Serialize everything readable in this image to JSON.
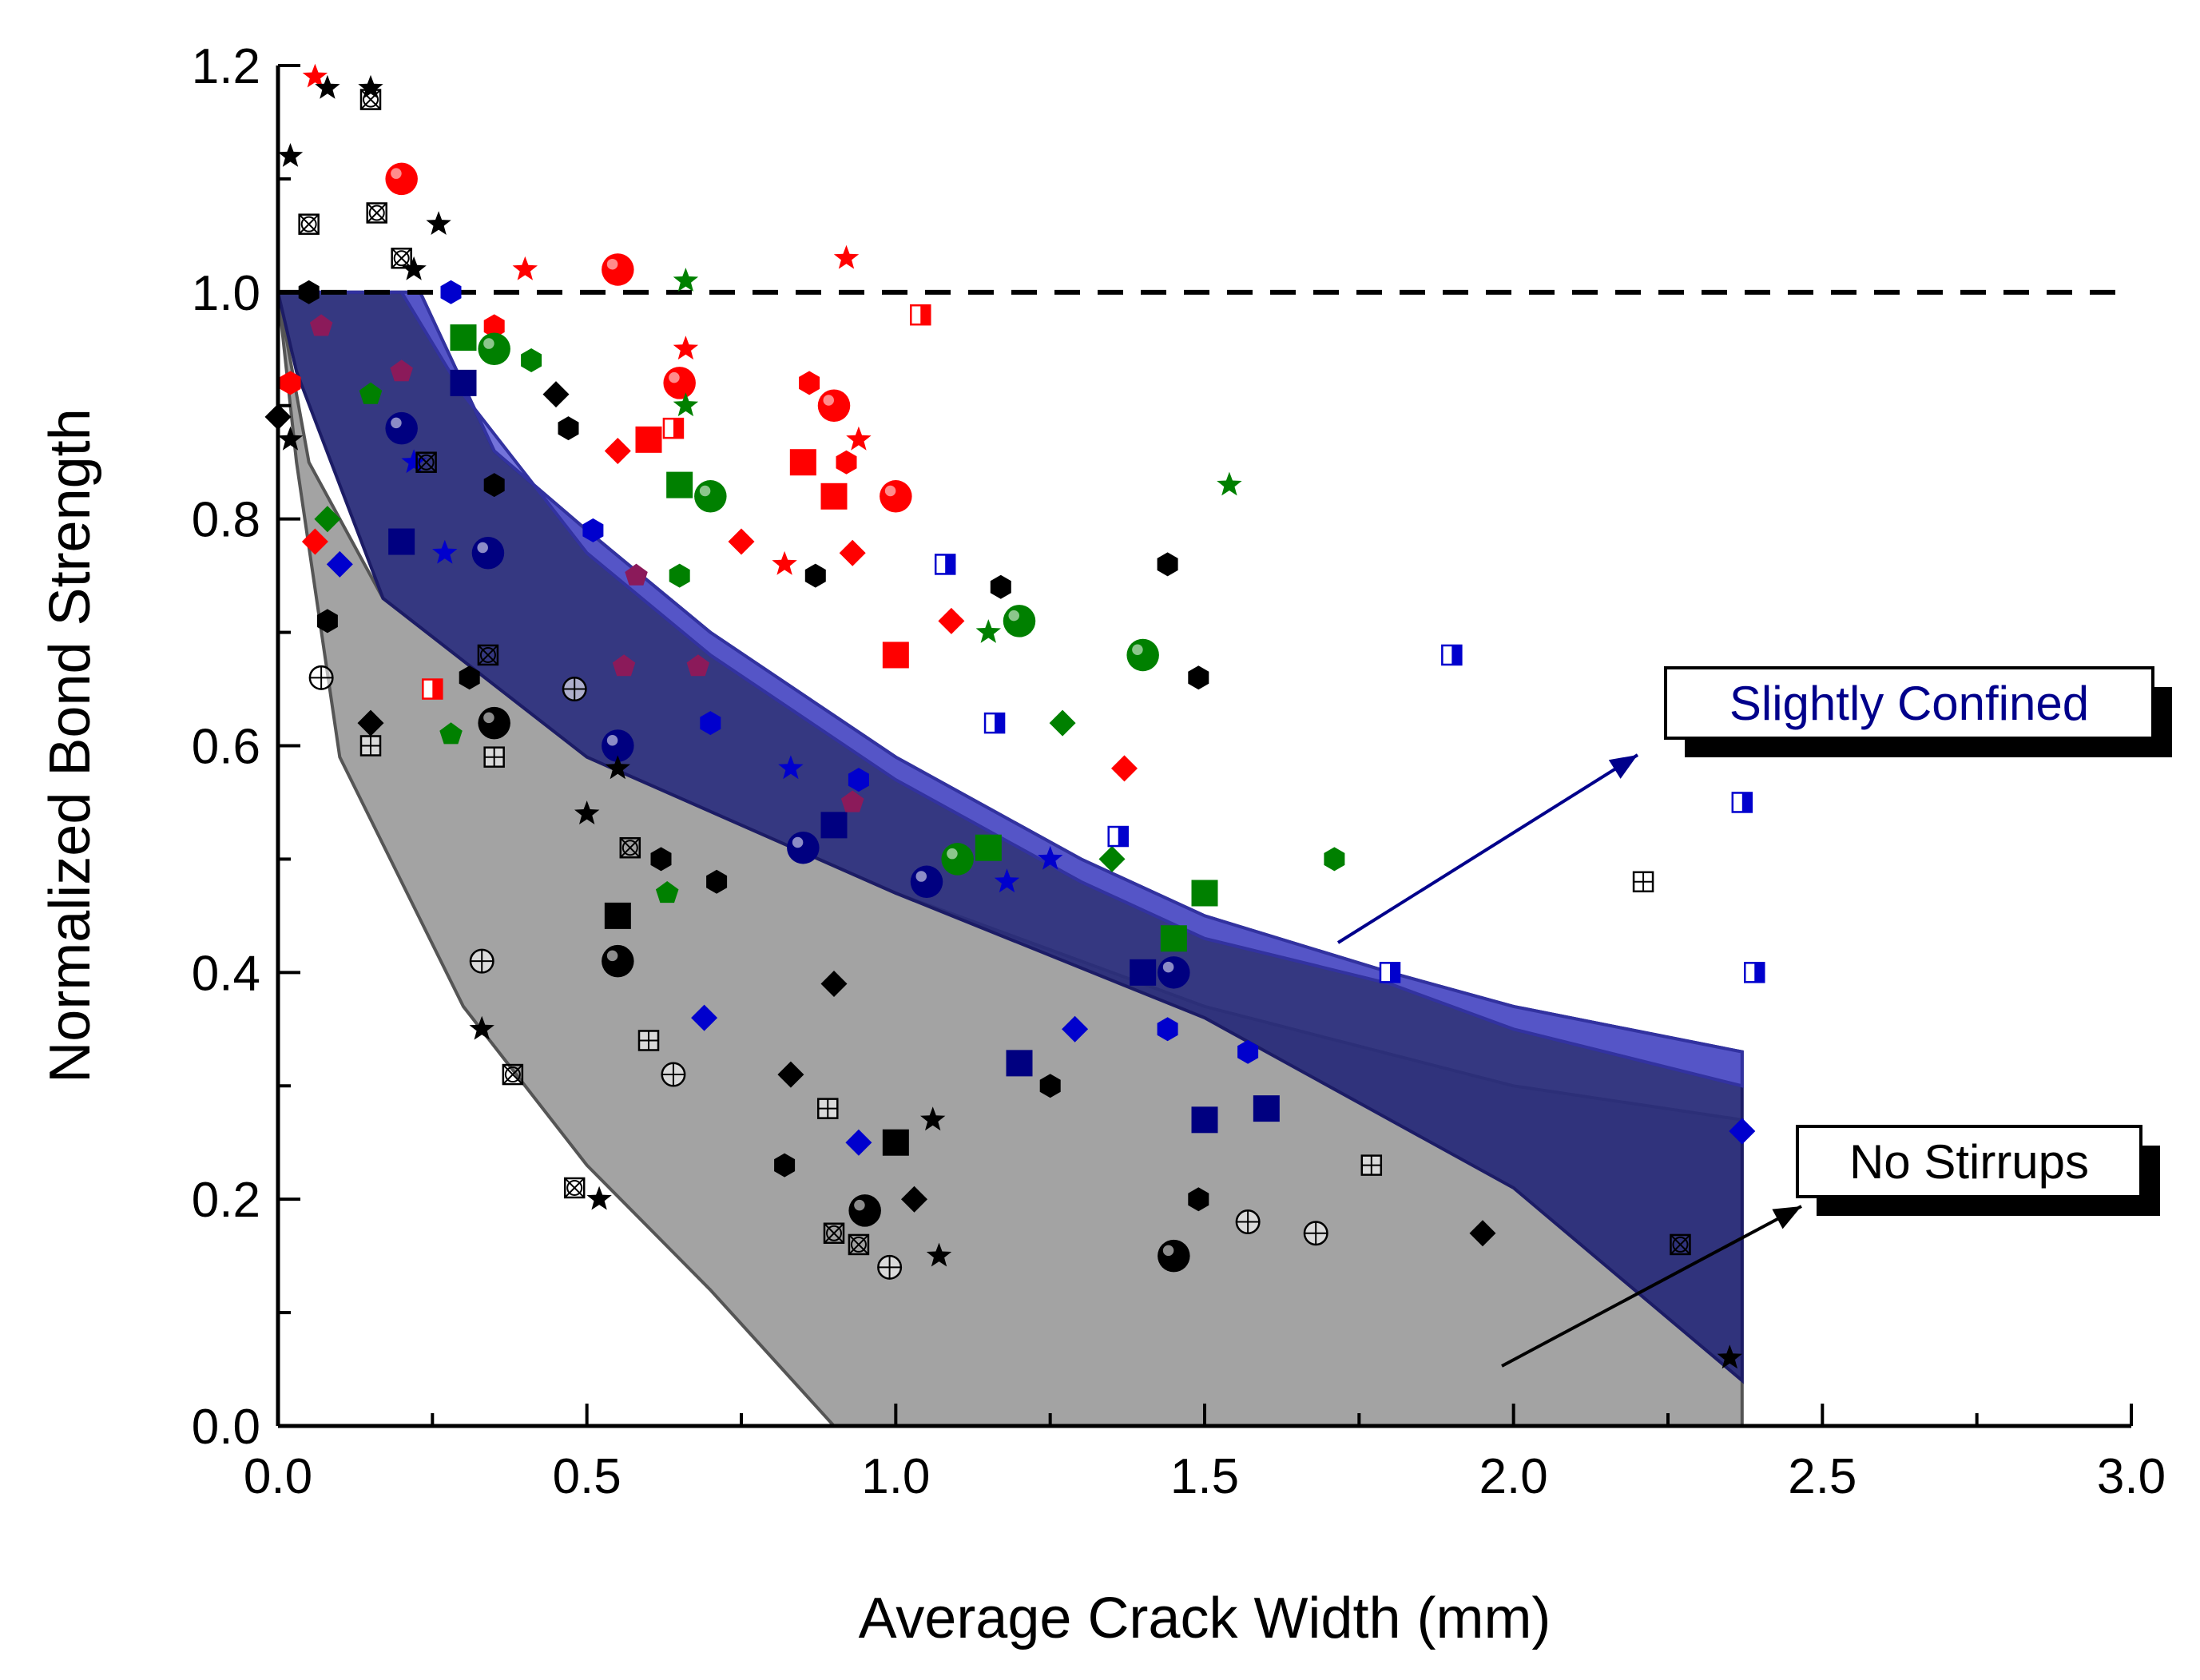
{
  "chart_data": {
    "type": "scatter",
    "title": "",
    "xlabel": "Average Crack Width (mm)",
    "ylabel": "Normalized Bond Strength",
    "xlim": [
      0,
      3.0
    ],
    "ylim": [
      0,
      1.2
    ],
    "xticks": [
      "0.0",
      "0.5",
      "1.0",
      "1.5",
      "2.0",
      "2.5",
      "3.0"
    ],
    "yticks": [
      "0.0",
      "0.2",
      "0.4",
      "0.6",
      "0.8",
      "1.0",
      "1.2"
    ],
    "grid": false,
    "reference_line": {
      "y": 1.0,
      "style": "dashed",
      "color": "#000000"
    },
    "annotations": [
      {
        "text": "Slightly Confined",
        "color": "#00008B",
        "points_to": "blue band"
      },
      {
        "text": "No Stirrups",
        "color": "#000000",
        "points_to": "grey band"
      }
    ],
    "bands": [
      {
        "fill": "#9e9e9e",
        "upper": [
          [
            0,
            1.0
          ],
          [
            0.05,
            0.85
          ],
          [
            0.17,
            0.73
          ],
          [
            0.5,
            0.59
          ],
          [
            1.0,
            0.47
          ],
          [
            1.5,
            0.37
          ],
          [
            2.0,
            0.3
          ],
          [
            2.37,
            0.27
          ]
        ],
        "lower": [
          [
            0,
            1.0
          ],
          [
            0.03,
            0.85
          ],
          [
            0.1,
            0.59
          ],
          [
            0.3,
            0.37
          ],
          [
            0.5,
            0.23
          ],
          [
            0.7,
            0.12
          ],
          [
            0.9,
            0.0
          ],
          [
            2.37,
            0.0
          ]
        ]
      },
      {
        "fill": "#2a2d7a",
        "upper": [
          [
            0,
            1.0
          ],
          [
            0.23,
            1.0
          ],
          [
            0.35,
            0.86
          ],
          [
            0.5,
            0.79
          ],
          [
            0.7,
            0.7
          ],
          [
            1.0,
            0.59
          ],
          [
            1.3,
            0.5
          ],
          [
            1.5,
            0.45
          ],
          [
            1.8,
            0.4
          ],
          [
            2.0,
            0.37
          ],
          [
            2.37,
            0.33
          ]
        ],
        "lower": [
          [
            0,
            1.0
          ],
          [
            0.03,
            0.93
          ],
          [
            0.17,
            0.73
          ],
          [
            0.5,
            0.59
          ],
          [
            1.0,
            0.47
          ],
          [
            1.5,
            0.36
          ],
          [
            2.0,
            0.21
          ],
          [
            2.37,
            0.04
          ]
        ]
      },
      {
        "fill": "#5a5ad4",
        "upper": [
          [
            0,
            1.0
          ],
          [
            0.23,
            1.0
          ],
          [
            0.35,
            0.86
          ],
          [
            0.5,
            0.79
          ],
          [
            0.7,
            0.7
          ],
          [
            1.0,
            0.59
          ],
          [
            1.3,
            0.5
          ],
          [
            1.5,
            0.45
          ],
          [
            1.8,
            0.4
          ],
          [
            2.0,
            0.37
          ],
          [
            2.37,
            0.33
          ]
        ],
        "lower": [
          [
            0,
            1.0
          ],
          [
            0.2,
            1.0
          ],
          [
            0.3,
            0.91
          ],
          [
            0.5,
            0.77
          ],
          [
            0.7,
            0.68
          ],
          [
            1.0,
            0.57
          ],
          [
            1.3,
            0.48
          ],
          [
            1.5,
            0.43
          ],
          [
            1.8,
            0.39
          ],
          [
            2.0,
            0.35
          ],
          [
            2.37,
            0.3
          ]
        ]
      }
    ],
    "series": [
      {
        "color": "#ff0000",
        "marker": "star",
        "points": [
          [
            0.06,
            1.19
          ],
          [
            0.4,
            1.02
          ],
          [
            0.92,
            1.03
          ],
          [
            0.66,
            0.95
          ],
          [
            0.94,
            0.87
          ],
          [
            0.82,
            0.76
          ]
        ]
      },
      {
        "color": "#ff0000",
        "marker": "ball",
        "points": [
          [
            0.2,
            1.1
          ],
          [
            0.55,
            1.02
          ],
          [
            0.65,
            0.92
          ],
          [
            0.9,
            0.9
          ],
          [
            1.0,
            0.82
          ]
        ]
      },
      {
        "color": "#ff0000",
        "marker": "square",
        "points": [
          [
            0.6,
            0.87
          ],
          [
            0.85,
            0.85
          ],
          [
            0.9,
            0.82
          ],
          [
            1.0,
            0.68
          ]
        ]
      },
      {
        "color": "#ff0000",
        "marker": "hexagon",
        "points": [
          [
            0.86,
            0.92
          ],
          [
            0.92,
            0.85
          ],
          [
            0.35,
            0.97
          ],
          [
            0.02,
            0.92
          ]
        ]
      },
      {
        "color": "#ff0000",
        "marker": "diamond",
        "points": [
          [
            0.55,
            0.86
          ],
          [
            0.75,
            0.78
          ],
          [
            0.93,
            0.77
          ],
          [
            1.09,
            0.71
          ],
          [
            1.37,
            0.58
          ],
          [
            0.06,
            0.78
          ]
        ]
      },
      {
        "color": "#ff0000",
        "marker": "half-square",
        "points": [
          [
            0.64,
            0.88
          ],
          [
            1.04,
            0.98
          ],
          [
            0.25,
            0.65
          ]
        ]
      },
      {
        "color": "#008000",
        "marker": "star",
        "points": [
          [
            0.66,
            1.01
          ],
          [
            0.66,
            0.9
          ],
          [
            1.15,
            0.7
          ],
          [
            1.54,
            0.83
          ]
        ]
      },
      {
        "color": "#008000",
        "marker": "ball",
        "points": [
          [
            0.35,
            0.95
          ],
          [
            0.7,
            0.82
          ],
          [
            1.2,
            0.71
          ],
          [
            1.4,
            0.68
          ],
          [
            1.1,
            0.5
          ]
        ]
      },
      {
        "color": "#008000",
        "marker": "square",
        "points": [
          [
            0.3,
            0.96
          ],
          [
            0.65,
            0.83
          ],
          [
            1.15,
            0.51
          ],
          [
            1.45,
            0.43
          ],
          [
            1.5,
            0.47
          ]
        ]
      },
      {
        "color": "#008000",
        "marker": "hexagon",
        "points": [
          [
            0.41,
            0.94
          ],
          [
            1.71,
            0.5
          ],
          [
            0.65,
            0.75
          ]
        ]
      },
      {
        "color": "#008000",
        "marker": "diamond",
        "points": [
          [
            1.27,
            0.62
          ],
          [
            1.35,
            0.5
          ],
          [
            0.08,
            0.8
          ]
        ]
      },
      {
        "color": "#008000",
        "marker": "pentagon",
        "points": [
          [
            0.28,
            0.61
          ],
          [
            0.63,
            0.47
          ],
          [
            0.15,
            0.91
          ]
        ]
      },
      {
        "color": "#0000cd",
        "marker": "hexagon",
        "points": [
          [
            0.28,
            1.0
          ],
          [
            0.51,
            0.79
          ],
          [
            0.7,
            0.62
          ],
          [
            0.94,
            0.57
          ],
          [
            1.57,
            0.33
          ],
          [
            1.44,
            0.35
          ]
        ]
      },
      {
        "color": "#0000cd",
        "marker": "diamond",
        "points": [
          [
            0.1,
            0.76
          ],
          [
            0.69,
            0.36
          ],
          [
            0.94,
            0.25
          ],
          [
            1.29,
            0.35
          ],
          [
            2.37,
            0.26
          ]
        ]
      },
      {
        "color": "#0000cd",
        "marker": "star",
        "points": [
          [
            0.22,
            0.85
          ],
          [
            0.27,
            0.77
          ],
          [
            0.83,
            0.58
          ],
          [
            1.25,
            0.5
          ],
          [
            1.18,
            0.48
          ]
        ]
      },
      {
        "color": "#0000cd",
        "marker": "half-square",
        "points": [
          [
            1.08,
            0.76
          ],
          [
            1.9,
            0.68
          ],
          [
            1.16,
            0.62
          ],
          [
            2.37,
            0.55
          ],
          [
            2.39,
            0.4
          ],
          [
            1.8,
            0.4
          ],
          [
            1.36,
            0.52
          ]
        ]
      },
      {
        "color": "#000080",
        "marker": "ball",
        "points": [
          [
            0.2,
            0.88
          ],
          [
            0.34,
            0.77
          ],
          [
            0.55,
            0.6
          ],
          [
            0.85,
            0.51
          ],
          [
            1.05,
            0.48
          ],
          [
            1.45,
            0.4
          ]
        ]
      },
      {
        "color": "#000080",
        "marker": "square",
        "points": [
          [
            0.3,
            0.92
          ],
          [
            0.2,
            0.78
          ],
          [
            0.9,
            0.53
          ],
          [
            1.4,
            0.4
          ],
          [
            1.2,
            0.32
          ],
          [
            1.5,
            0.27
          ],
          [
            1.6,
            0.28
          ]
        ]
      },
      {
        "color": "#8b1a5a",
        "marker": "pentagon",
        "points": [
          [
            0.07,
            0.97
          ],
          [
            0.2,
            0.93
          ],
          [
            0.58,
            0.75
          ],
          [
            0.68,
            0.67
          ],
          [
            0.56,
            0.67
          ],
          [
            0.93,
            0.55
          ]
        ]
      },
      {
        "color": "#000000",
        "marker": "star",
        "points": [
          [
            0.08,
            1.18
          ],
          [
            0.15,
            1.18
          ],
          [
            0.26,
            1.06
          ],
          [
            0.22,
            1.02
          ],
          [
            0.02,
            1.12
          ],
          [
            0.02,
            0.87
          ],
          [
            0.5,
            0.54
          ],
          [
            0.33,
            0.35
          ],
          [
            1.06,
            0.27
          ],
          [
            1.07,
            0.15
          ],
          [
            0.55,
            0.58
          ],
          [
            2.35,
            0.06
          ],
          [
            0.52,
            0.2
          ]
        ]
      },
      {
        "color": "#000000",
        "marker": "ball",
        "points": [
          [
            0.35,
            0.62
          ],
          [
            0.55,
            0.41
          ],
          [
            0.95,
            0.19
          ],
          [
            1.45,
            0.15
          ]
        ]
      },
      {
        "color": "#000000",
        "marker": "square",
        "points": [
          [
            0.55,
            0.45
          ],
          [
            1.0,
            0.25
          ]
        ]
      },
      {
        "color": "#000000",
        "marker": "hexagon",
        "points": [
          [
            0.47,
            0.88
          ],
          [
            0.35,
            0.83
          ],
          [
            0.87,
            0.75
          ],
          [
            1.17,
            0.74
          ],
          [
            1.44,
            0.76
          ],
          [
            1.49,
            0.66
          ],
          [
            0.62,
            0.5
          ],
          [
            0.71,
            0.48
          ],
          [
            0.82,
            0.23
          ],
          [
            1.25,
            0.3
          ],
          [
            1.49,
            0.2
          ],
          [
            0.31,
            0.66
          ],
          [
            0.08,
            0.71
          ],
          [
            0.05,
            1.0
          ]
        ]
      },
      {
        "color": "#000000",
        "marker": "diamond",
        "points": [
          [
            0.45,
            0.91
          ],
          [
            0.15,
            0.62
          ],
          [
            0.83,
            0.31
          ],
          [
            1.03,
            0.2
          ],
          [
            1.95,
            0.17
          ],
          [
            0.9,
            0.39
          ],
          [
            0.0,
            0.89
          ]
        ]
      },
      {
        "color": "#000000",
        "marker": "crossed-square",
        "points": [
          [
            0.15,
            1.17
          ],
          [
            0.05,
            1.06
          ],
          [
            0.16,
            1.07
          ],
          [
            0.2,
            1.03
          ],
          [
            0.24,
            0.85
          ],
          [
            0.38,
            0.31
          ],
          [
            0.9,
            0.17
          ],
          [
            0.94,
            0.16
          ],
          [
            0.48,
            0.21
          ],
          [
            2.27,
            0.16
          ],
          [
            0.57,
            0.51
          ],
          [
            0.34,
            0.68
          ]
        ]
      },
      {
        "color": "#000000",
        "marker": "crossed-circle",
        "points": [
          [
            0.07,
            0.66
          ],
          [
            0.33,
            0.41
          ],
          [
            0.64,
            0.31
          ],
          [
            0.99,
            0.14
          ],
          [
            1.57,
            0.18
          ],
          [
            1.68,
            0.17
          ],
          [
            0.48,
            0.65
          ]
        ]
      },
      {
        "color": "#000000",
        "marker": "grid-square",
        "points": [
          [
            0.15,
            0.6
          ],
          [
            0.6,
            0.34
          ],
          [
            0.89,
            0.28
          ],
          [
            1.77,
            0.23
          ],
          [
            0.35,
            0.59
          ],
          [
            2.21,
            0.48
          ]
        ]
      }
    ]
  }
}
